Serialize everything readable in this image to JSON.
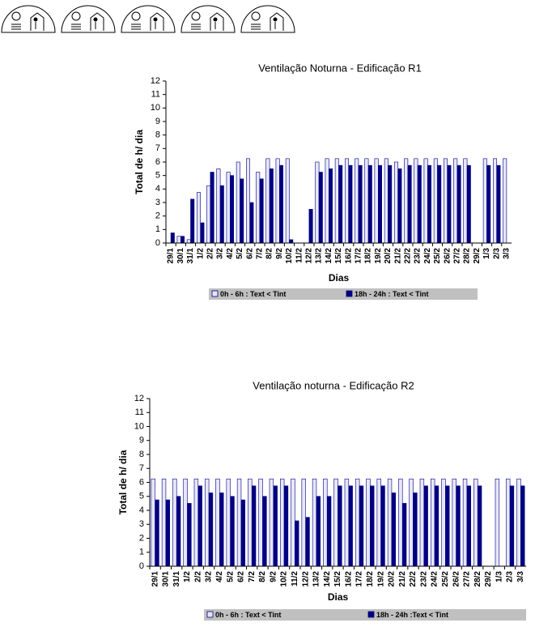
{
  "chart_data": [
    {
      "type": "bar",
      "title": "Ventilação Noturna -  Edificação R1",
      "x_label": "Dias",
      "y_label": "Total de h/ dia",
      "categories": [
        "29/1",
        "30/1",
        "31/1",
        "1/2",
        "2/2",
        "3/2",
        "4/2",
        "5/2",
        "6/2",
        "7/2",
        "8/2",
        "9/2",
        "10/2",
        "11/2",
        "12/2",
        "13/2",
        "14/2",
        "15/2",
        "16/2",
        "17/2",
        "18/2",
        "19/2",
        "20/2",
        "21/2",
        "22/2",
        "23/2",
        "24/2",
        "25/2",
        "26/2",
        "27/2",
        "28/2",
        "29/2",
        "1/3",
        "2/3",
        "3/3"
      ],
      "series": [
        {
          "name": "0h - 6h : Text < Tint",
          "color": "#e6e6fa",
          "values": [
            0,
            0.5,
            0.25,
            3.75,
            4.25,
            5.5,
            5.25,
            6,
            6.25,
            5.25,
            6.25,
            6.25,
            6.25,
            0,
            0,
            6,
            6.25,
            6.25,
            6.25,
            6.25,
            6.25,
            6.25,
            6.25,
            6,
            6.25,
            6.25,
            6.25,
            6.25,
            6.25,
            6.25,
            6.25,
            0,
            6.25,
            6.25,
            6.25
          ]
        },
        {
          "name": "18h - 24h : Text < Tint",
          "color": "#000080",
          "values": [
            0.75,
            0.5,
            3.25,
            1.5,
            5.25,
            4.25,
            5,
            4.75,
            3,
            4.75,
            5.5,
            5.75,
            0.25,
            0,
            2.5,
            5.25,
            5.5,
            5.75,
            5.75,
            5.75,
            5.75,
            5.75,
            5.75,
            5.5,
            5.75,
            5.75,
            5.75,
            5.75,
            5.75,
            5.75,
            5.75,
            0,
            5.75,
            5.75,
            0
          ]
        }
      ],
      "ylim": [
        0,
        12
      ],
      "yticks": [
        0,
        1,
        2,
        3,
        4,
        5,
        6,
        7,
        8,
        9,
        10,
        11,
        12
      ]
    },
    {
      "type": "bar",
      "title": "Ventilação noturna -  Edificação R2",
      "x_label": "Dias",
      "y_label": "Total de h/ dia",
      "categories": [
        "29/1",
        "30/1",
        "31/1",
        "1/2",
        "2/2",
        "3/2",
        "4/2",
        "5/2",
        "6/2",
        "7/2",
        "8/2",
        "9/2",
        "10/2",
        "11/2",
        "12/2",
        "13/2",
        "14/2",
        "15/2",
        "16/2",
        "17/2",
        "18/2",
        "19/2",
        "20/2",
        "21/2",
        "22/2",
        "23/2",
        "24/2",
        "25/2",
        "26/2",
        "27/2",
        "28/2",
        "29/2",
        "1/3",
        "2/3",
        "3/3"
      ],
      "series": [
        {
          "name": "0h - 6h : Text < Tint",
          "color": "#e6e6fa",
          "values": [
            6.25,
            6.25,
            6.25,
            6.25,
            6.25,
            6.25,
            6.25,
            6.25,
            6.25,
            6.25,
            6.25,
            6.25,
            6.25,
            6.25,
            6.25,
            6.25,
            6.25,
            6.25,
            6.25,
            6.25,
            6.25,
            6.25,
            6.25,
            6.25,
            6.25,
            6.25,
            6.25,
            6.25,
            6.25,
            6.25,
            6.25,
            0,
            6.25,
            6.25,
            6.25
          ]
        },
        {
          "name": "18h - 24h :Text < Tint",
          "color": "#000080",
          "values": [
            4.75,
            4.75,
            5,
            4.5,
            5.75,
            5.25,
            5.25,
            5,
            4.75,
            5.75,
            5,
            5.75,
            5.75,
            3.25,
            3.5,
            5,
            5,
            5.75,
            5.75,
            5.75,
            5.75,
            5.75,
            5.25,
            4.5,
            5.25,
            5.75,
            5.75,
            5.75,
            5.75,
            5.75,
            5.75,
            0,
            0,
            5.75,
            5.75
          ]
        }
      ],
      "ylim": [
        0,
        12
      ],
      "yticks": [
        0,
        1,
        2,
        3,
        4,
        5,
        6,
        7,
        8,
        9,
        10,
        11,
        12
      ]
    }
  ]
}
